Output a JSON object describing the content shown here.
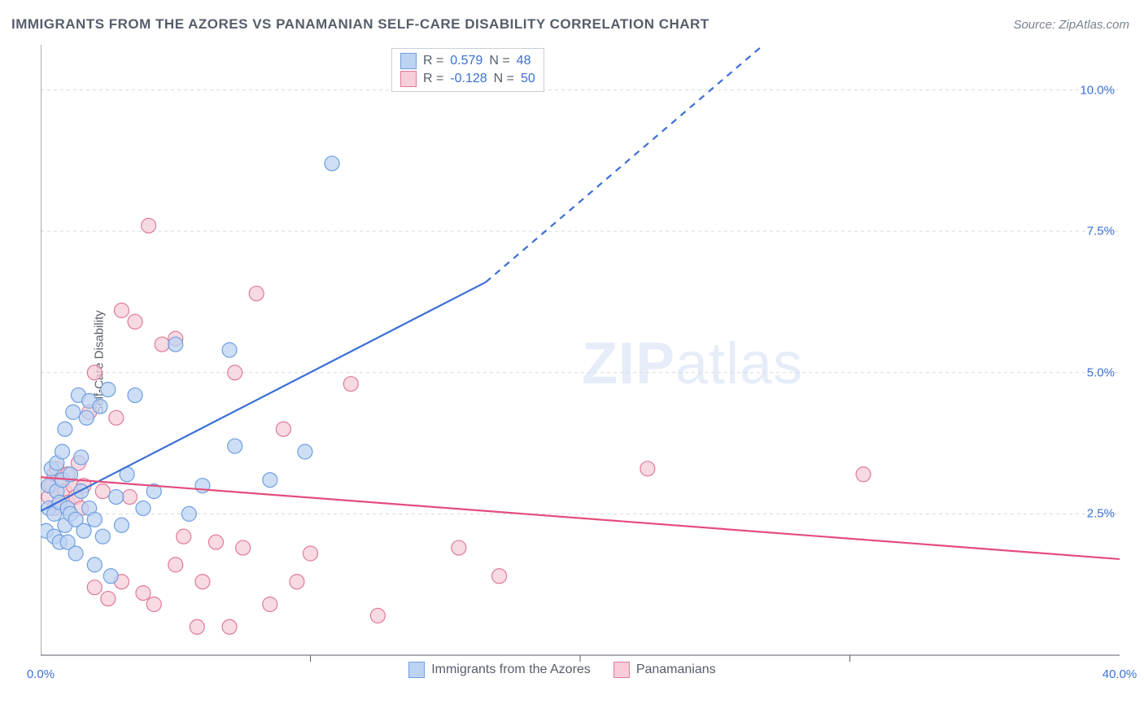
{
  "title": "IMMIGRANTS FROM THE AZORES VS PANAMANIAN SELF-CARE DISABILITY CORRELATION CHART",
  "source": "Source: ZipAtlas.com",
  "watermark_left": "ZIP",
  "watermark_right": "atlas",
  "chart": {
    "type": "scatter",
    "background_color": "#ffffff",
    "grid_color": "#d6dadf",
    "axis_color": "#555e6a",
    "tick_label_color": "#3b6fd6",
    "text_color": "#555e6a",
    "xlim": [
      0,
      40
    ],
    "ylim": [
      0,
      10.8
    ],
    "xtick_labels": [
      "0.0%",
      "40.0%"
    ],
    "xtick_positions": [
      0,
      40
    ],
    "xminor_ticks": [
      10,
      20,
      30
    ],
    "ytick_labels": [
      "2.5%",
      "5.0%",
      "7.5%",
      "10.0%"
    ],
    "ytick_positions": [
      2.5,
      5.0,
      7.5,
      10.0
    ],
    "ylabel": "Self-Care Disability",
    "marker_radius": 9,
    "marker_stroke_width": 1.2,
    "line_width": 2.2,
    "series": [
      {
        "name": "Immigrants from the Azores",
        "key": "azores",
        "point_fill": "#bcd3f2",
        "point_stroke": "#6f9fe0",
        "line_color": "#3b6fd6",
        "R": "0.579",
        "N": "48",
        "trend": {
          "x1": 0,
          "y1": 2.55,
          "x_solid_end": 16.5,
          "y_solid_end": 6.6,
          "x2": 26.8,
          "y2": 10.8
        },
        "points": [
          [
            0.2,
            2.2
          ],
          [
            0.3,
            2.6
          ],
          [
            0.3,
            3.0
          ],
          [
            0.4,
            3.3
          ],
          [
            0.5,
            2.1
          ],
          [
            0.5,
            2.5
          ],
          [
            0.6,
            2.9
          ],
          [
            0.6,
            3.4
          ],
          [
            0.7,
            2.0
          ],
          [
            0.7,
            2.7
          ],
          [
            0.8,
            3.1
          ],
          [
            0.8,
            3.6
          ],
          [
            0.9,
            2.3
          ],
          [
            0.9,
            4.0
          ],
          [
            1.0,
            2.0
          ],
          [
            1.0,
            2.6
          ],
          [
            1.1,
            3.2
          ],
          [
            1.1,
            2.5
          ],
          [
            1.2,
            4.3
          ],
          [
            1.3,
            1.8
          ],
          [
            1.3,
            2.4
          ],
          [
            1.4,
            4.6
          ],
          [
            1.5,
            2.9
          ],
          [
            1.5,
            3.5
          ],
          [
            1.6,
            2.2
          ],
          [
            1.7,
            4.2
          ],
          [
            1.8,
            2.6
          ],
          [
            1.8,
            4.5
          ],
          [
            2.0,
            1.6
          ],
          [
            2.0,
            2.4
          ],
          [
            2.2,
            4.4
          ],
          [
            2.3,
            2.1
          ],
          [
            2.5,
            4.7
          ],
          [
            2.6,
            1.4
          ],
          [
            2.8,
            2.8
          ],
          [
            3.0,
            2.3
          ],
          [
            3.2,
            3.2
          ],
          [
            3.5,
            4.6
          ],
          [
            3.8,
            2.6
          ],
          [
            4.2,
            2.9
          ],
          [
            5.0,
            5.5
          ],
          [
            5.5,
            2.5
          ],
          [
            6.0,
            3.0
          ],
          [
            7.0,
            5.4
          ],
          [
            7.2,
            3.7
          ],
          [
            8.5,
            3.1
          ],
          [
            9.8,
            3.6
          ],
          [
            10.8,
            8.7
          ]
        ]
      },
      {
        "name": "Panamanians",
        "key": "panamanians",
        "point_fill": "#f6cdd8",
        "point_stroke": "#e07a98",
        "line_color": "#e44d7b",
        "R": "-0.128",
        "N": "50",
        "trend": {
          "x1": 0,
          "y1": 3.15,
          "x_solid_end": 40,
          "y_solid_end": 1.7,
          "x2": 40,
          "y2": 1.7
        },
        "points": [
          [
            0.3,
            2.8
          ],
          [
            0.4,
            3.0
          ],
          [
            0.5,
            2.6
          ],
          [
            0.5,
            3.2
          ],
          [
            0.6,
            2.9
          ],
          [
            0.6,
            3.3
          ],
          [
            0.7,
            2.7
          ],
          [
            0.8,
            3.1
          ],
          [
            0.9,
            2.9
          ],
          [
            1.0,
            2.7
          ],
          [
            1.0,
            3.2
          ],
          [
            1.2,
            3.0
          ],
          [
            1.3,
            2.8
          ],
          [
            1.4,
            3.4
          ],
          [
            1.5,
            2.6
          ],
          [
            1.6,
            3.0
          ],
          [
            1.8,
            4.3
          ],
          [
            2.0,
            1.2
          ],
          [
            2.0,
            5.0
          ],
          [
            2.3,
            2.9
          ],
          [
            2.5,
            1.0
          ],
          [
            2.8,
            4.2
          ],
          [
            3.0,
            1.3
          ],
          [
            3.0,
            6.1
          ],
          [
            3.3,
            2.8
          ],
          [
            3.5,
            5.9
          ],
          [
            3.8,
            1.1
          ],
          [
            4.0,
            7.6
          ],
          [
            4.2,
            0.9
          ],
          [
            4.5,
            5.5
          ],
          [
            5.0,
            1.6
          ],
          [
            5.0,
            5.6
          ],
          [
            5.3,
            2.1
          ],
          [
            5.8,
            0.5
          ],
          [
            6.0,
            1.3
          ],
          [
            6.5,
            2.0
          ],
          [
            7.0,
            0.5
          ],
          [
            7.2,
            5.0
          ],
          [
            7.5,
            1.9
          ],
          [
            8.0,
            6.4
          ],
          [
            8.5,
            0.9
          ],
          [
            9.0,
            4.0
          ],
          [
            9.5,
            1.3
          ],
          [
            10.0,
            1.8
          ],
          [
            11.5,
            4.8
          ],
          [
            12.5,
            0.7
          ],
          [
            15.5,
            1.9
          ],
          [
            17.0,
            1.4
          ],
          [
            22.5,
            3.3
          ],
          [
            30.5,
            3.2
          ]
        ]
      }
    ],
    "legend_top": {
      "R_label": "R =",
      "N_label": "N ="
    },
    "legend_bottom": {
      "items": [
        "Immigrants from the Azores",
        "Panamanians"
      ]
    }
  }
}
